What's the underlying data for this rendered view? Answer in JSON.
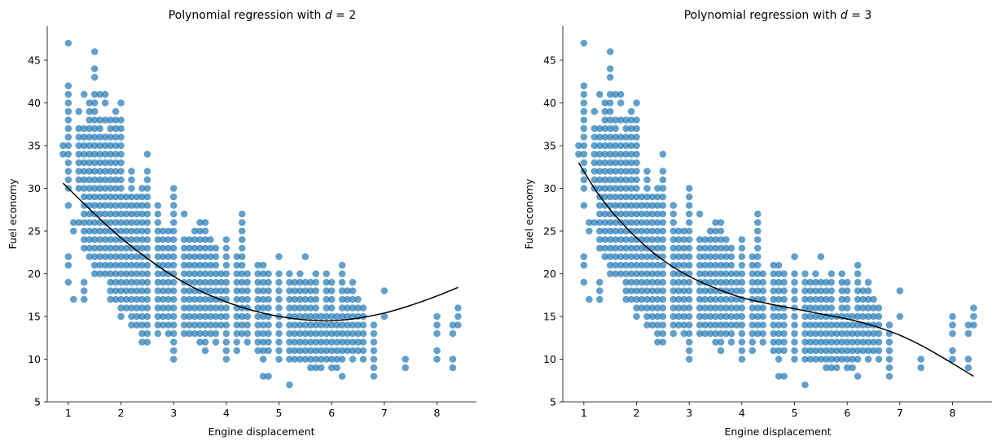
{
  "chart_data": [
    {
      "type": "scatter",
      "title": "Polynomial regression with d = 2",
      "title_parts": {
        "prefix": "Polynomial regression with ",
        "var": "d",
        "eq": " = 2"
      },
      "xlabel": "Engine displacement",
      "ylabel": "Fuel economy",
      "xlim": [
        0.6,
        8.75
      ],
      "ylim": [
        5,
        49
      ],
      "xticks": [
        1,
        2,
        3,
        4,
        5,
        6,
        7,
        8
      ],
      "yticks": [
        5,
        10,
        15,
        20,
        25,
        30,
        35,
        40,
        45
      ],
      "grid": false,
      "point_color": "#1f77b4",
      "point_alpha": 0.7,
      "line_color": "#000000",
      "columns": [
        {
          "x": 0.9,
          "y": [
            34,
            35
          ]
        },
        {
          "x": 1.0,
          "y": [
            19,
            21,
            22,
            28,
            30,
            31,
            32,
            33,
            34,
            35,
            36,
            37,
            38,
            39,
            40,
            41,
            42,
            47
          ]
        },
        {
          "x": 1.1,
          "y": [
            17,
            25,
            26
          ]
        },
        {
          "x": 1.2,
          "y": [
            26,
            30,
            31,
            32,
            33,
            34,
            35,
            36,
            37,
            39
          ]
        },
        {
          "x": 1.3,
          "y": [
            17,
            18,
            19,
            23,
            24,
            25,
            26,
            27,
            28,
            29,
            30,
            31,
            32,
            33,
            34,
            35,
            36,
            37,
            41
          ]
        },
        {
          "x": 1.4,
          "y": [
            22,
            23,
            24,
            25,
            26,
            27,
            28,
            29,
            30,
            31,
            32,
            33,
            34,
            35,
            36,
            37,
            38,
            39,
            40
          ]
        },
        {
          "x": 1.5,
          "y": [
            20,
            21,
            22,
            23,
            24,
            25,
            26,
            27,
            28,
            29,
            30,
            31,
            32,
            33,
            34,
            35,
            36,
            37,
            38,
            39,
            40,
            41,
            43,
            44,
            46
          ]
        },
        {
          "x": 1.6,
          "y": [
            20,
            21,
            22,
            23,
            24,
            25,
            26,
            27,
            28,
            29,
            30,
            31,
            32,
            33,
            34,
            35,
            36,
            37,
            38,
            41
          ]
        },
        {
          "x": 1.7,
          "y": [
            20,
            21,
            22,
            23,
            24,
            25,
            26,
            27,
            28,
            29,
            30,
            31,
            32,
            33,
            34,
            35,
            36,
            38,
            40,
            41
          ]
        },
        {
          "x": 1.8,
          "y": [
            17,
            18,
            19,
            20,
            21,
            22,
            23,
            24,
            25,
            26,
            27,
            28,
            29,
            30,
            31,
            32,
            33,
            34,
            35,
            36,
            37,
            38
          ]
        },
        {
          "x": 1.9,
          "y": [
            17,
            18,
            19,
            20,
            21,
            22,
            23,
            24,
            25,
            26,
            27,
            28,
            29,
            30,
            31,
            32,
            33,
            34,
            35,
            36,
            37,
            38,
            39
          ]
        },
        {
          "x": 2.0,
          "y": [
            15,
            16,
            17,
            18,
            19,
            20,
            21,
            22,
            23,
            24,
            25,
            26,
            27,
            28,
            29,
            30,
            31,
            32,
            33,
            34,
            35,
            36,
            37,
            38,
            40
          ]
        },
        {
          "x": 2.1,
          "y": [
            16,
            17,
            18,
            19,
            20,
            21,
            22,
            23,
            24,
            25,
            26,
            27,
            28,
            29
          ]
        },
        {
          "x": 2.2,
          "y": [
            14,
            15,
            16,
            17,
            18,
            19,
            20,
            21,
            22,
            23,
            24,
            25,
            26,
            27,
            28,
            29,
            30,
            31,
            32
          ]
        },
        {
          "x": 2.3,
          "y": [
            14,
            15,
            16,
            17,
            18,
            19,
            20,
            21,
            22,
            23,
            24,
            25,
            26,
            27,
            28,
            29
          ]
        },
        {
          "x": 2.4,
          "y": [
            12,
            13,
            14,
            15,
            16,
            17,
            18,
            19,
            20,
            21,
            22,
            23,
            24,
            25,
            26,
            27,
            28,
            29,
            30
          ]
        },
        {
          "x": 2.5,
          "y": [
            12,
            13,
            14,
            15,
            16,
            17,
            18,
            19,
            20,
            21,
            22,
            23,
            24,
            25,
            26,
            27,
            28,
            29,
            30,
            31,
            32,
            34
          ]
        },
        {
          "x": 2.7,
          "y": [
            13,
            14,
            15,
            16,
            17,
            18,
            19,
            20,
            21,
            22,
            23,
            24,
            25,
            26,
            27,
            28
          ]
        },
        {
          "x": 2.8,
          "y": [
            14,
            15,
            16,
            17,
            18,
            19,
            20,
            21,
            22,
            23,
            24,
            25
          ]
        },
        {
          "x": 2.9,
          "y": [
            13,
            14,
            15,
            16,
            17,
            18,
            19,
            20,
            21,
            22,
            23,
            24,
            25
          ]
        },
        {
          "x": 3.0,
          "y": [
            10,
            11,
            12,
            13,
            14,
            15,
            16,
            17,
            18,
            19,
            20,
            21,
            22,
            23,
            24,
            25,
            26,
            27,
            28,
            29,
            30
          ]
        },
        {
          "x": 3.2,
          "y": [
            13,
            14,
            15,
            16,
            17,
            18,
            19,
            20,
            21,
            22,
            23,
            24,
            27
          ]
        },
        {
          "x": 3.3,
          "y": [
            13,
            14,
            15,
            16,
            17,
            18,
            19,
            20,
            21,
            22,
            23,
            24
          ]
        },
        {
          "x": 3.4,
          "y": [
            13,
            14,
            15,
            16,
            17,
            18,
            19,
            20,
            21,
            22,
            23,
            24,
            25
          ]
        },
        {
          "x": 3.5,
          "y": [
            12,
            13,
            14,
            15,
            16,
            17,
            18,
            19,
            20,
            21,
            22,
            23,
            24,
            25,
            26
          ]
        },
        {
          "x": 3.6,
          "y": [
            11,
            12,
            13,
            14,
            15,
            16,
            17,
            18,
            19,
            20,
            21,
            22,
            23,
            24,
            25,
            26
          ]
        },
        {
          "x": 3.7,
          "y": [
            13,
            14,
            15,
            16,
            17,
            18,
            19,
            20,
            21,
            22,
            23,
            24
          ]
        },
        {
          "x": 3.8,
          "y": [
            12,
            13,
            14,
            15,
            16,
            17,
            18,
            19,
            20,
            21,
            22,
            23
          ]
        },
        {
          "x": 3.9,
          "y": [
            14,
            15,
            16,
            17,
            18,
            19,
            20
          ]
        },
        {
          "x": 4.0,
          "y": [
            10,
            11,
            12,
            13,
            14,
            15,
            16,
            17,
            18,
            19,
            20,
            21,
            22,
            23,
            24
          ]
        },
        {
          "x": 4.2,
          "y": [
            11,
            12,
            13,
            14,
            15,
            16,
            17,
            18,
            19,
            20,
            21,
            22
          ]
        },
        {
          "x": 4.3,
          "y": [
            13,
            14,
            15,
            16,
            17,
            18,
            19,
            20,
            21,
            22,
            23,
            24,
            25,
            26,
            27
          ]
        },
        {
          "x": 4.4,
          "y": [
            12,
            13,
            14,
            15,
            16,
            17,
            18,
            19,
            20
          ]
        },
        {
          "x": 4.6,
          "y": [
            11,
            12,
            13,
            14,
            15,
            16,
            17,
            18,
            19,
            20,
            21
          ]
        },
        {
          "x": 4.7,
          "y": [
            8,
            10,
            11,
            12,
            13,
            14,
            15,
            16,
            17,
            18,
            19,
            20,
            21
          ]
        },
        {
          "x": 4.8,
          "y": [
            8,
            11,
            12,
            13,
            14,
            15,
            16,
            17,
            18,
            19,
            20
          ]
        },
        {
          "x": 5.0,
          "y": [
            10,
            11,
            12,
            13,
            14,
            15,
            16,
            17,
            18,
            19,
            20,
            22
          ]
        },
        {
          "x": 5.2,
          "y": [
            7,
            10,
            11,
            12,
            13,
            14,
            15,
            16,
            17,
            18,
            19,
            20
          ]
        },
        {
          "x": 5.3,
          "y": [
            10,
            11,
            12,
            13,
            14,
            15,
            16,
            17,
            18,
            19
          ]
        },
        {
          "x": 5.4,
          "y": [
            10,
            11,
            12,
            13,
            14,
            15,
            16,
            17,
            18,
            19,
            20
          ]
        },
        {
          "x": 5.5,
          "y": [
            10,
            11,
            12,
            13,
            14,
            15,
            16,
            17,
            18,
            19,
            22
          ]
        },
        {
          "x": 5.6,
          "y": [
            9,
            10,
            11,
            12,
            13,
            14,
            15,
            16,
            17,
            18,
            19
          ]
        },
        {
          "x": 5.7,
          "y": [
            9,
            10,
            11,
            12,
            13,
            14,
            15,
            16,
            17,
            18,
            19,
            20
          ]
        },
        {
          "x": 5.8,
          "y": [
            9,
            10,
            11,
            12,
            13,
            14,
            15
          ]
        },
        {
          "x": 5.9,
          "y": [
            10,
            11,
            12,
            13,
            14,
            15,
            16,
            17,
            18,
            19,
            20
          ]
        },
        {
          "x": 6.0,
          "y": [
            9,
            10,
            11,
            12,
            13,
            14,
            15,
            16,
            17,
            18,
            19
          ]
        },
        {
          "x": 6.1,
          "y": [
            9,
            10,
            11,
            12,
            13,
            14,
            15
          ]
        },
        {
          "x": 6.2,
          "y": [
            8,
            10,
            11,
            12,
            13,
            14,
            15,
            16,
            17,
            18,
            19,
            20,
            21
          ]
        },
        {
          "x": 6.3,
          "y": [
            11,
            12,
            13,
            14,
            15,
            16,
            17,
            18
          ]
        },
        {
          "x": 6.4,
          "y": [
            10,
            11,
            12,
            13,
            14,
            15,
            16,
            17,
            18,
            19
          ]
        },
        {
          "x": 6.5,
          "y": [
            11,
            12,
            13,
            14,
            15,
            16,
            17
          ]
        },
        {
          "x": 6.6,
          "y": [
            10,
            11,
            12,
            13,
            14,
            15,
            16
          ]
        },
        {
          "x": 6.8,
          "y": [
            8,
            9,
            10,
            11,
            12,
            13,
            14
          ]
        },
        {
          "x": 7.0,
          "y": [
            15,
            18
          ]
        },
        {
          "x": 7.4,
          "y": [
            9,
            10
          ]
        },
        {
          "x": 8.0,
          "y": [
            10,
            11,
            13,
            14,
            15
          ]
        },
        {
          "x": 8.3,
          "y": [
            9,
            10,
            13,
            14
          ]
        },
        {
          "x": 8.4,
          "y": [
            14,
            15,
            16
          ]
        }
      ],
      "fit_curve": {
        "x": [
          0.9,
          1.5,
          2.0,
          2.5,
          3.0,
          3.5,
          4.0,
          4.5,
          5.0,
          5.5,
          6.0,
          6.5,
          7.0,
          7.5,
          8.0,
          8.4
        ],
        "y": [
          30.6,
          27.0,
          24.2,
          21.8,
          19.7,
          18.0,
          16.7,
          15.7,
          15.0,
          14.6,
          14.5,
          14.8,
          15.4,
          16.3,
          17.4,
          18.4
        ]
      }
    },
    {
      "type": "scatter",
      "title": "Polynomial regression with d = 3",
      "title_parts": {
        "prefix": "Polynomial regression with ",
        "var": "d",
        "eq": " = 3"
      },
      "xlabel": "Engine displacement",
      "ylabel": "Fuel economy",
      "xlim": [
        0.6,
        8.75
      ],
      "ylim": [
        5,
        49
      ],
      "xticks": [
        1,
        2,
        3,
        4,
        5,
        6,
        7,
        8
      ],
      "yticks": [
        5,
        10,
        15,
        20,
        25,
        30,
        35,
        40,
        45
      ],
      "grid": false,
      "point_color": "#1f77b4",
      "point_alpha": 0.7,
      "line_color": "#000000",
      "same_points_as": 0,
      "fit_curve": {
        "x": [
          0.9,
          1.2,
          1.5,
          2.0,
          2.5,
          3.0,
          3.5,
          4.0,
          4.5,
          5.0,
          5.5,
          6.0,
          6.5,
          7.0,
          7.5,
          8.0,
          8.4
        ],
        "y": [
          33.0,
          30.0,
          27.5,
          24.2,
          21.6,
          19.7,
          18.3,
          17.2,
          16.5,
          15.9,
          15.3,
          14.7,
          13.9,
          12.8,
          11.3,
          9.5,
          8.0
        ]
      }
    }
  ]
}
